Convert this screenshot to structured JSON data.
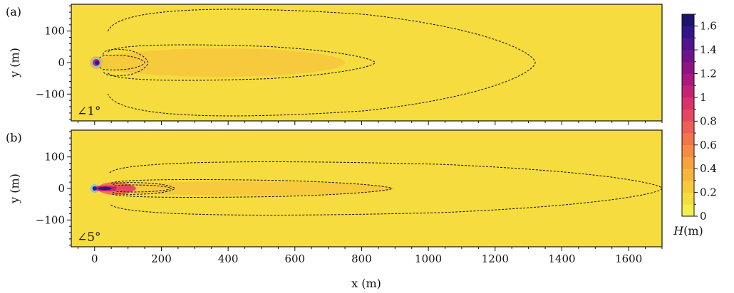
{
  "chart_data": [
    {
      "type": "heatmap",
      "panel_label": "(a)",
      "angle_label": "∠1°",
      "ylabel": "y (m)",
      "xlim": [
        -70,
        1700
      ],
      "ylim": [
        -185,
        185
      ],
      "yticks": [
        100,
        0,
        -100
      ],
      "ytick_labels": [
        "100",
        "0",
        "−100"
      ],
      "field": {
        "background_H": 0.15,
        "region_H_0_25": {
          "x_max": 800,
          "half_width": 140
        },
        "region_H_0_35": {
          "x_max": 750,
          "half_width": 45
        },
        "source_ring": {
          "x": 5,
          "y": 0
        }
      },
      "dashed_contours": [
        {
          "x_start": 15,
          "x_end": 150,
          "half_width": 25
        },
        {
          "x_start": 25,
          "x_end": 160,
          "half_width": 45
        },
        {
          "x_start": 40,
          "x_end": 840,
          "half_width": 60
        },
        {
          "x_start": 40,
          "x_end": 1320,
          "half_width": 180
        }
      ]
    },
    {
      "type": "heatmap",
      "panel_label": "(b)",
      "angle_label": "∠5°",
      "xlabel": "x (m)",
      "ylabel": "y (m)",
      "xlim": [
        -70,
        1700
      ],
      "ylim": [
        -185,
        185
      ],
      "xticks": [
        0,
        200,
        400,
        600,
        800,
        1000,
        1200,
        1400,
        1600
      ],
      "xtick_labels": [
        "0",
        "200",
        "400",
        "600",
        "800",
        "1000",
        "1200",
        "1400",
        "1600"
      ],
      "yticks": [
        100,
        0,
        -100
      ],
      "ytick_labels": [
        "100",
        "0",
        "−100"
      ],
      "field": {
        "background_H": 0.15,
        "region_H_0_25": {
          "x_max": 1650,
          "half_width": 65
        },
        "region_H_0_35": {
          "x_max": 900,
          "half_width": 22
        },
        "jet": {
          "x_start": 0,
          "x_end": 110
        }
      },
      "dashed_contours": [
        {
          "x_start": 60,
          "x_end": 230,
          "half_width": 12
        },
        {
          "x_start": 55,
          "x_end": 240,
          "half_width": 20
        },
        {
          "x_start": 50,
          "x_end": 890,
          "half_width": 30
        },
        {
          "x_start": 45,
          "x_end": 1700,
          "half_width": 90
        }
      ]
    }
  ],
  "colorbar": {
    "label": "H (m)",
    "label_italic": "H",
    "label_unit": "(m)",
    "min": 0,
    "max": 1.7,
    "ticks": [
      0,
      0.2,
      0.4,
      0.6,
      0.8,
      1,
      1.2,
      1.4,
      1.6
    ],
    "tick_labels": [
      "0",
      "0.2",
      "0.4",
      "0.6",
      "0.8",
      "1",
      "1.2",
      "1.4",
      "1.6"
    ],
    "colors": [
      "#f4ee4a",
      "#f6dc3e",
      "#f7c93d",
      "#f8b53b",
      "#f7a13f",
      "#f68c44",
      "#f3754b",
      "#ee5e55",
      "#e54760",
      "#d8336b",
      "#c42375",
      "#ac187d",
      "#901385",
      "#70138a",
      "#50148d",
      "#331489",
      "#1b1470"
    ]
  },
  "colors": {
    "bg_yellow": "#f4ee4a",
    "zone_outer": "#f6dc3e",
    "zone_inner": "#f7c93d",
    "ring_cyan": "#7ecbd4",
    "ring_magenta": "#c42375",
    "ring_dark": "#331489"
  }
}
